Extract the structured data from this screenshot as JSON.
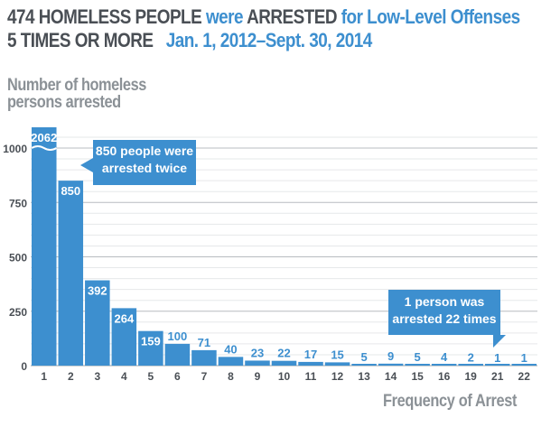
{
  "header": {
    "line1_a": "474 HOMELESS PEOPLE",
    "line1_b": "were",
    "line1_c": "ARRESTED",
    "line1_d": "for Low-Level Offenses",
    "line2_a": "5 TIMES OR MORE",
    "line2_b": "Jan. 1, 2012–Sept. 30, 2014"
  },
  "colors": {
    "bar": "#3d8fcf",
    "dark_text": "#4a4f55",
    "grey_text": "#8b9196",
    "grid": "#d5d8db"
  },
  "chart_data": {
    "type": "bar",
    "title": "474 HOMELESS PEOPLE were ARRESTED for Low-Level Offenses 5 TIMES OR MORE Jan. 1, 2012–Sept. 30, 2014",
    "ylabel_lines": [
      "Number of homeless",
      "persons arrested"
    ],
    "xlabel": "Frequency of Arrest",
    "categories": [
      "1",
      "2",
      "3",
      "4",
      "5",
      "6",
      "7",
      "8",
      "9",
      "10",
      "11",
      "12",
      "13",
      "14",
      "15",
      "16",
      "19",
      "21",
      "22"
    ],
    "values": [
      2062,
      850,
      392,
      264,
      159,
      100,
      71,
      40,
      23,
      22,
      17,
      15,
      5,
      9,
      5,
      4,
      2,
      1,
      1
    ],
    "value_labels": [
      "2062",
      "850",
      "392",
      "264",
      "159",
      "100",
      "71",
      "40",
      "23",
      "22",
      "17",
      "15",
      "5",
      "9",
      "5",
      "4",
      "2",
      "1",
      "1"
    ],
    "yticks": [
      0,
      250,
      500,
      750,
      1000
    ],
    "ylim": [
      0,
      1000
    ],
    "axis_break": true,
    "grid": true,
    "annotations": [
      {
        "lines": [
          "850 people were",
          "arrested twice"
        ],
        "target": "2"
      },
      {
        "lines": [
          "1 person was",
          "arrested 22 times"
        ],
        "target": "22"
      }
    ]
  }
}
